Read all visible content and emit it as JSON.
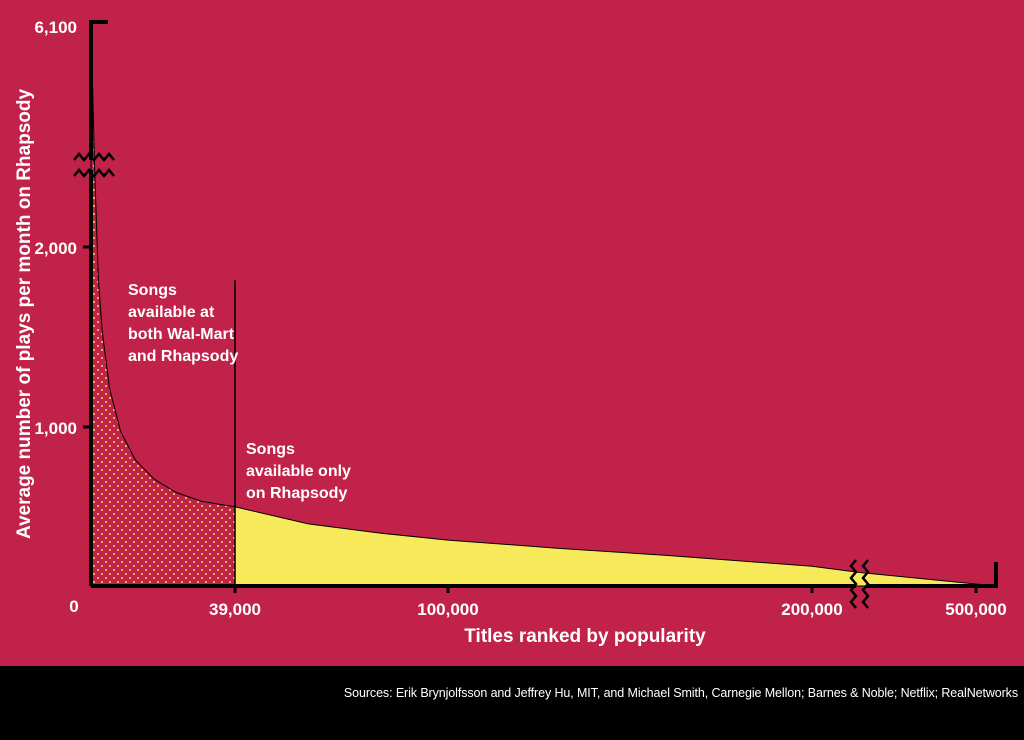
{
  "chart_data": {
    "type": "area",
    "xlabel": "Titles ranked by popularity",
    "ylabel": "Average number of plays per month on Rhapsody",
    "x_ticks": [
      "39,000",
      "100,000",
      "200,000",
      "500,000"
    ],
    "x_zero_label": "0",
    "y_ticks": [
      "1,000",
      "2,000",
      "6,100"
    ],
    "axis_breaks": {
      "y": "between 2,000 and 6,100",
      "x": "between 200,000 and 500,000"
    },
    "series": [
      {
        "name": "Songs available at both Wal-Mart and Rhapsody",
        "x": [
          0,
          1000,
          2000,
          3000,
          5000,
          8000,
          12000,
          17000,
          23000,
          30000,
          39000
        ],
        "y": [
          6100,
          2300,
          1700,
          1420,
          1100,
          860,
          700,
          595,
          520,
          470,
          440
        ]
      },
      {
        "name": "Songs available only on Rhapsody",
        "x": [
          39000,
          60000,
          80000,
          100000,
          130000,
          160000,
          200000,
          230000,
          500000
        ],
        "y": [
          440,
          345,
          295,
          255,
          210,
          170,
          110,
          75,
          0
        ]
      }
    ],
    "annotations": [
      {
        "lines": [
          "Songs",
          "available at",
          "both Wal-Mart",
          "and Rhapsody"
        ]
      },
      {
        "lines": [
          "Songs",
          "available only",
          "on Rhapsody"
        ]
      }
    ],
    "colors": {
      "background": "#c1224a",
      "head": "#c1224a",
      "head_dots": "#f2e14f",
      "tail": "#f7ea5a",
      "axis": "#000000",
      "text": "#ffffff"
    }
  },
  "source": "Sources: Erik Brynjolfsson and Jeffrey Hu, MIT, and Michael Smith, Carnegie Mellon; Barnes & Noble; Netflix; RealNetworks"
}
